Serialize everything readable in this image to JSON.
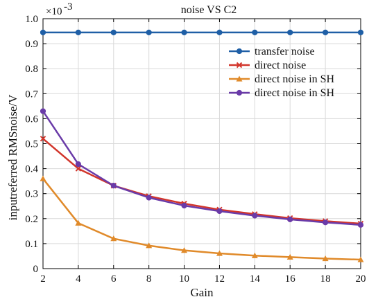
{
  "chart_data": {
    "type": "line",
    "title": "noise VS C2",
    "xlabel": "Gain",
    "ylabel": "inputreferred RMSnoise/V",
    "y_multiplier_label": "×10",
    "y_multiplier_exp": "-3",
    "x": [
      2,
      4,
      6,
      8,
      10,
      12,
      14,
      16,
      18,
      20
    ],
    "xlim": [
      2,
      20
    ],
    "ylim": [
      0,
      1.0
    ],
    "xticks": [
      "2",
      "4",
      "6",
      "8",
      "10",
      "12",
      "14",
      "16",
      "18",
      "20"
    ],
    "yticks": [
      "0",
      "0.1",
      "0.2",
      "0.3",
      "0.4",
      "0.5",
      "0.6",
      "0.7",
      "0.8",
      "0.9",
      "1.0"
    ],
    "grid": true,
    "legend_position": "top-right",
    "series": [
      {
        "name": "transfer noise",
        "color": "#1f5fa6",
        "marker": "circle",
        "values": [
          0.945,
          0.945,
          0.945,
          0.945,
          0.945,
          0.945,
          0.945,
          0.945,
          0.945,
          0.945
        ]
      },
      {
        "name": "direct noise",
        "color": "#d2352b",
        "marker": "x",
        "values": [
          0.52,
          0.4,
          0.332,
          0.29,
          0.26,
          0.236,
          0.218,
          0.202,
          0.19,
          0.18
        ]
      },
      {
        "name": "direct noise in SH",
        "color": "#e08a2a",
        "marker": "triangle",
        "values": [
          0.36,
          0.182,
          0.12,
          0.092,
          0.073,
          0.061,
          0.052,
          0.046,
          0.04,
          0.036
        ]
      },
      {
        "name": "direct noise in SH",
        "color": "#6a3ba8",
        "marker": "circle",
        "values": [
          0.63,
          0.418,
          0.332,
          0.284,
          0.252,
          0.23,
          0.212,
          0.197,
          0.185,
          0.175
        ]
      }
    ]
  }
}
